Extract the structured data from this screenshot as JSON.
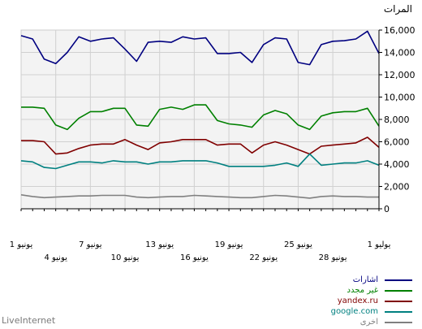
{
  "chart_data": {
    "type": "line",
    "ylabel": "المرات",
    "ylim": [
      0,
      16000
    ],
    "yticks": [
      "0",
      "2,000",
      "4,000",
      "6,000",
      "8,000",
      "10,000",
      "12,000",
      "14,000",
      "16,000"
    ],
    "xticks_top": [
      {
        "i": 0,
        "label": "1 يوليو"
      },
      {
        "i": 7,
        "label": "25 يونيو"
      },
      {
        "i": 13,
        "label": "19 يونيو"
      },
      {
        "i": 19,
        "label": "13 يونيو"
      },
      {
        "i": 25,
        "label": "7 يونيو"
      },
      {
        "i": 31,
        "label": "1 يونيو"
      }
    ],
    "xticks_bottom": [
      {
        "i": 4,
        "label": "28 يونيو"
      },
      {
        "i": 10,
        "label": "22 يونيو"
      },
      {
        "i": 16,
        "label": "16 يونيو"
      },
      {
        "i": 22,
        "label": "10 يونيو"
      },
      {
        "i": 28,
        "label": "4 يونيو"
      }
    ],
    "x_direction": "right-to-left",
    "grid": true,
    "legend_position": "bottom-right",
    "series": [
      {
        "name": "اشارات",
        "color": "#000080",
        "values": [
          13900,
          15900,
          15200,
          15050,
          15000,
          14700,
          12900,
          13100,
          15200,
          15300,
          14700,
          13100,
          14000,
          13900,
          13900,
          15300,
          15200,
          15400,
          14900,
          15000,
          14900,
          13200,
          14300,
          15300,
          15200,
          15000,
          15400,
          14000,
          13000,
          13400,
          15200,
          15500
        ]
      },
      {
        "name": "غير مجدد",
        "color": "#008000",
        "values": [
          7400,
          9000,
          8700,
          8700,
          8600,
          8300,
          7100,
          7500,
          8500,
          8800,
          8400,
          7300,
          7500,
          7600,
          7900,
          9300,
          9300,
          8900,
          9100,
          8900,
          7400,
          7500,
          9000,
          9000,
          8700,
          8700,
          8100,
          7100,
          7500,
          9000,
          9100,
          9100
        ]
      },
      {
        "name": "yandex.ru",
        "color": "#800000",
        "values": [
          5500,
          6400,
          5900,
          5800,
          5700,
          5600,
          4900,
          5300,
          5700,
          6000,
          5700,
          5000,
          5800,
          5800,
          5700,
          6200,
          6200,
          6200,
          6000,
          5900,
          5300,
          5700,
          6200,
          5800,
          5800,
          5700,
          5400,
          5000,
          4900,
          6000,
          6100,
          6100
        ]
      },
      {
        "name": "google.com",
        "color": "#008080",
        "values": [
          3900,
          4300,
          4100,
          4100,
          4000,
          3900,
          4900,
          3800,
          4100,
          3900,
          3800,
          3800,
          3800,
          3800,
          4100,
          4300,
          4300,
          4300,
          4200,
          4200,
          4000,
          4200,
          4200,
          4300,
          4100,
          4200,
          4200,
          3900,
          3600,
          3700,
          4200,
          4300
        ]
      },
      {
        "name": "اخرى",
        "color": "#808080",
        "values": [
          1050,
          1050,
          1100,
          1100,
          1150,
          1100,
          950,
          1050,
          1150,
          1200,
          1100,
          1000,
          1000,
          1050,
          1100,
          1150,
          1200,
          1100,
          1100,
          1050,
          1000,
          1050,
          1200,
          1200,
          1200,
          1150,
          1150,
          1100,
          1050,
          1000,
          1100,
          1250
        ]
      }
    ]
  },
  "brand": "LiveInternet"
}
